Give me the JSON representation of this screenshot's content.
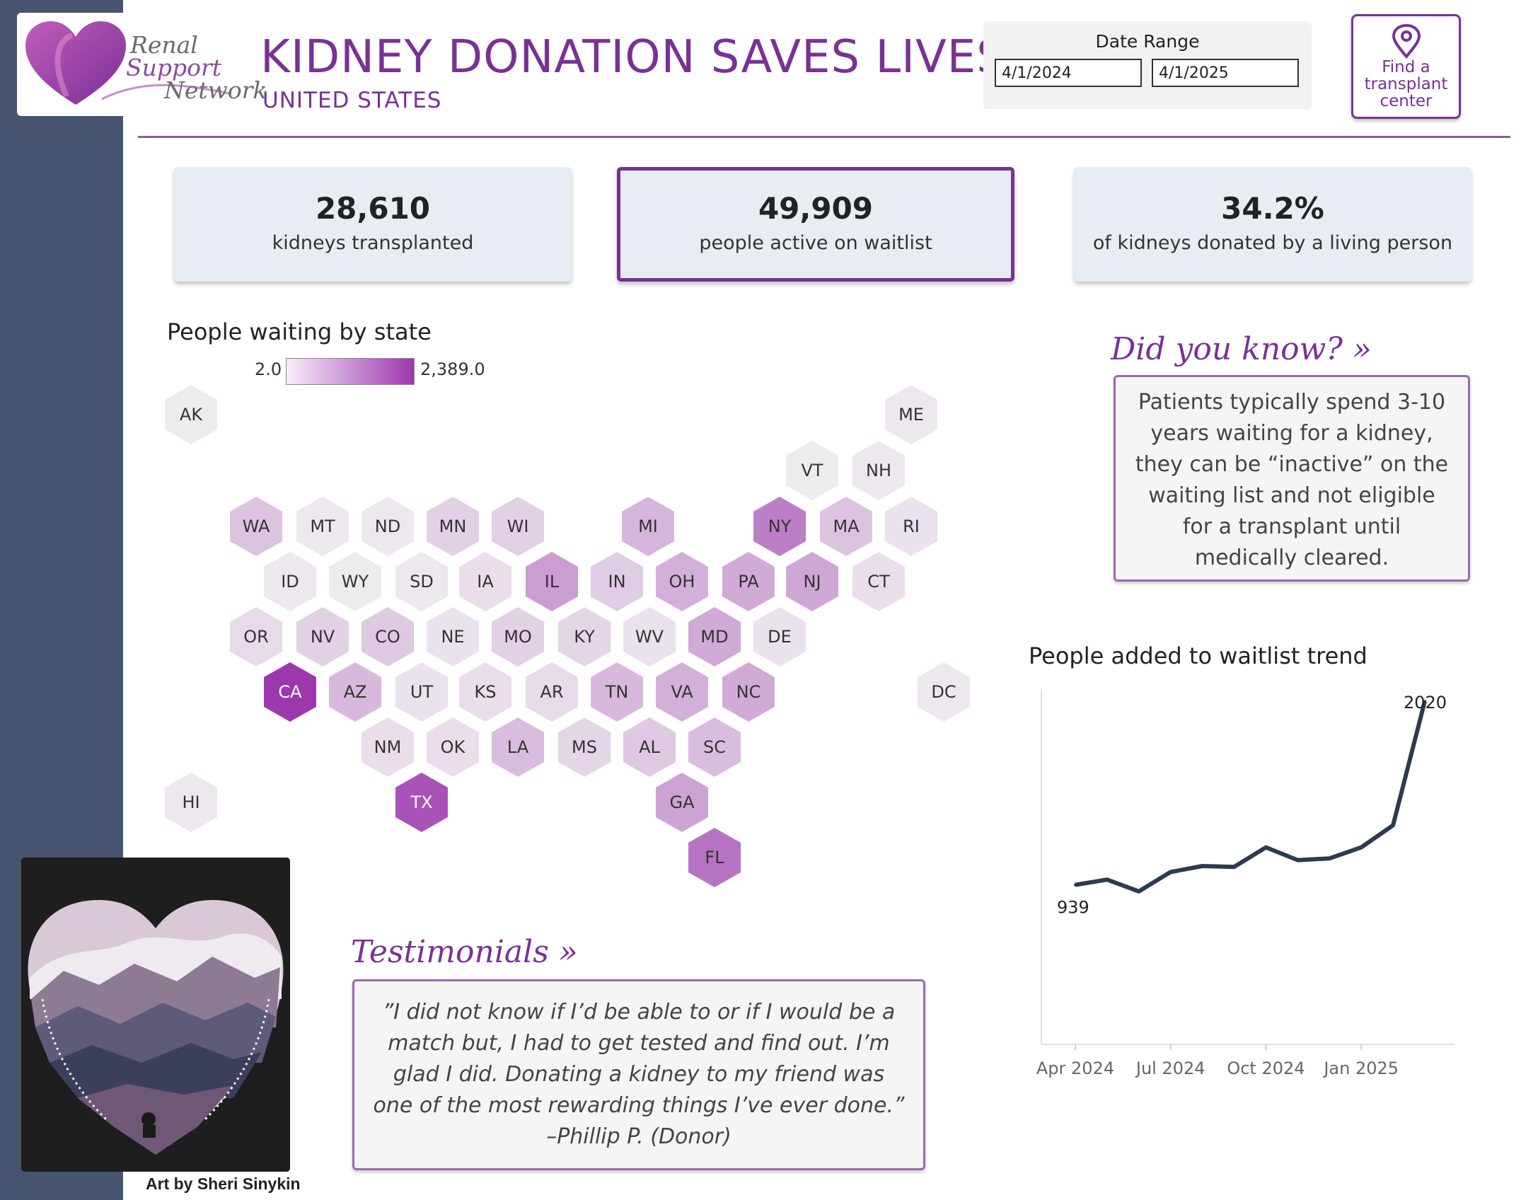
{
  "header": {
    "logo": {
      "line1": "Renal",
      "line2": "Support",
      "line3": "Network"
    },
    "title": "KIDNEY DONATION SAVES LIVES",
    "subtitle": "UNITED STATES"
  },
  "date_range": {
    "label": "Date Range",
    "start": "4/1/2024",
    "end": "4/1/2025"
  },
  "find_center_button": {
    "line1": "Find a",
    "line2": "transplant",
    "line3": "center",
    "icon": "location-pin-icon"
  },
  "kpis": [
    {
      "value": "28,610",
      "label": "kidneys transplanted"
    },
    {
      "value": "49,909",
      "label": "people active on waitlist"
    },
    {
      "value": "34.2%",
      "label": "of kidneys donated by a living person"
    }
  ],
  "map": {
    "title": "People waiting by state",
    "legend_min": "2.0",
    "legend_max": "2,389.0",
    "color_low": "#f7eef8",
    "color_high": "#9c37ae",
    "states": [
      {
        "abbr": "AK",
        "level": 0.03
      },
      {
        "abbr": "ME",
        "level": 0.05
      },
      {
        "abbr": "VT",
        "level": 0.03
      },
      {
        "abbr": "NH",
        "level": 0.05
      },
      {
        "abbr": "WA",
        "level": 0.25
      },
      {
        "abbr": "MT",
        "level": 0.05
      },
      {
        "abbr": "ND",
        "level": 0.05
      },
      {
        "abbr": "MN",
        "level": 0.18
      },
      {
        "abbr": "WI",
        "level": 0.18
      },
      {
        "abbr": "MI",
        "level": 0.32
      },
      {
        "abbr": "NY",
        "level": 0.62
      },
      {
        "abbr": "MA",
        "level": 0.25
      },
      {
        "abbr": "RI",
        "level": 0.08
      },
      {
        "abbr": "ID",
        "level": 0.05
      },
      {
        "abbr": "WY",
        "level": 0.03
      },
      {
        "abbr": "SD",
        "level": 0.05
      },
      {
        "abbr": "IA",
        "level": 0.1
      },
      {
        "abbr": "IL",
        "level": 0.45
      },
      {
        "abbr": "IN",
        "level": 0.2
      },
      {
        "abbr": "OH",
        "level": 0.35
      },
      {
        "abbr": "PA",
        "level": 0.38
      },
      {
        "abbr": "NJ",
        "level": 0.4
      },
      {
        "abbr": "CT",
        "level": 0.1
      },
      {
        "abbr": "OR",
        "level": 0.12
      },
      {
        "abbr": "NV",
        "level": 0.18
      },
      {
        "abbr": "CO",
        "level": 0.22
      },
      {
        "abbr": "NE",
        "level": 0.08
      },
      {
        "abbr": "MO",
        "level": 0.18
      },
      {
        "abbr": "KY",
        "level": 0.15
      },
      {
        "abbr": "WV",
        "level": 0.08
      },
      {
        "abbr": "MD",
        "level": 0.38
      },
      {
        "abbr": "DE",
        "level": 0.08
      },
      {
        "abbr": "CA",
        "level": 1.0
      },
      {
        "abbr": "AZ",
        "level": 0.3
      },
      {
        "abbr": "UT",
        "level": 0.08
      },
      {
        "abbr": "KS",
        "level": 0.1
      },
      {
        "abbr": "AR",
        "level": 0.12
      },
      {
        "abbr": "TN",
        "level": 0.3
      },
      {
        "abbr": "VA",
        "level": 0.35
      },
      {
        "abbr": "NC",
        "level": 0.38
      },
      {
        "abbr": "DC",
        "level": 0.05
      },
      {
        "abbr": "NM",
        "level": 0.1
      },
      {
        "abbr": "OK",
        "level": 0.1
      },
      {
        "abbr": "LA",
        "level": 0.28
      },
      {
        "abbr": "MS",
        "level": 0.15
      },
      {
        "abbr": "AL",
        "level": 0.22
      },
      {
        "abbr": "SC",
        "level": 0.28
      },
      {
        "abbr": "HI",
        "level": 0.05
      },
      {
        "abbr": "TX",
        "level": 0.85
      },
      {
        "abbr": "GA",
        "level": 0.42
      },
      {
        "abbr": "FL",
        "level": 0.68
      }
    ]
  },
  "did_you_know": {
    "heading": "Did you know? »",
    "text": "Patients typically spend 3-10 years waiting for a kidney, they can be “inactive” on the waiting list and not eligible for a transplant until medically cleared."
  },
  "trend": {
    "title": "People added to waitlist trend",
    "start_label": "939",
    "end_label": "2020",
    "line_color": "#2f3a4f"
  },
  "chart_data": {
    "type": "line",
    "title": "People added to waitlist trend",
    "x": [
      "Apr 2024",
      "May 2024",
      "Jun 2024",
      "Jul 2024",
      "Aug 2024",
      "Sep 2024",
      "Oct 2024",
      "Nov 2024",
      "Dec 2024",
      "Jan 2025",
      "Feb 2025",
      "Mar 2025"
    ],
    "x_tick_labels": [
      "Apr 2024",
      "Jul 2024",
      "Oct 2024",
      "Jan 2025"
    ],
    "series": [
      {
        "values": [
          939,
          970,
          901,
          1015,
          1050,
          1045,
          1160,
          1085,
          1095,
          1160,
          1290,
          2020
        ]
      }
    ],
    "data_labels": {
      "first": "939",
      "last": "2020"
    },
    "ylim": [
      0,
      2050
    ],
    "grid": false,
    "y_axis_labels_shown": false
  },
  "art": {
    "caption": "Art by Sheri Sinykin"
  },
  "testimonial": {
    "heading": "Testimonials »",
    "text": "”I did not know if I’d be able to or if I would be a match but, I had to get tested and find out. I’m glad I did. Donating a kidney to my friend was one of the most rewarding things I’ve ever done.” –Phillip P. (Donor)"
  }
}
